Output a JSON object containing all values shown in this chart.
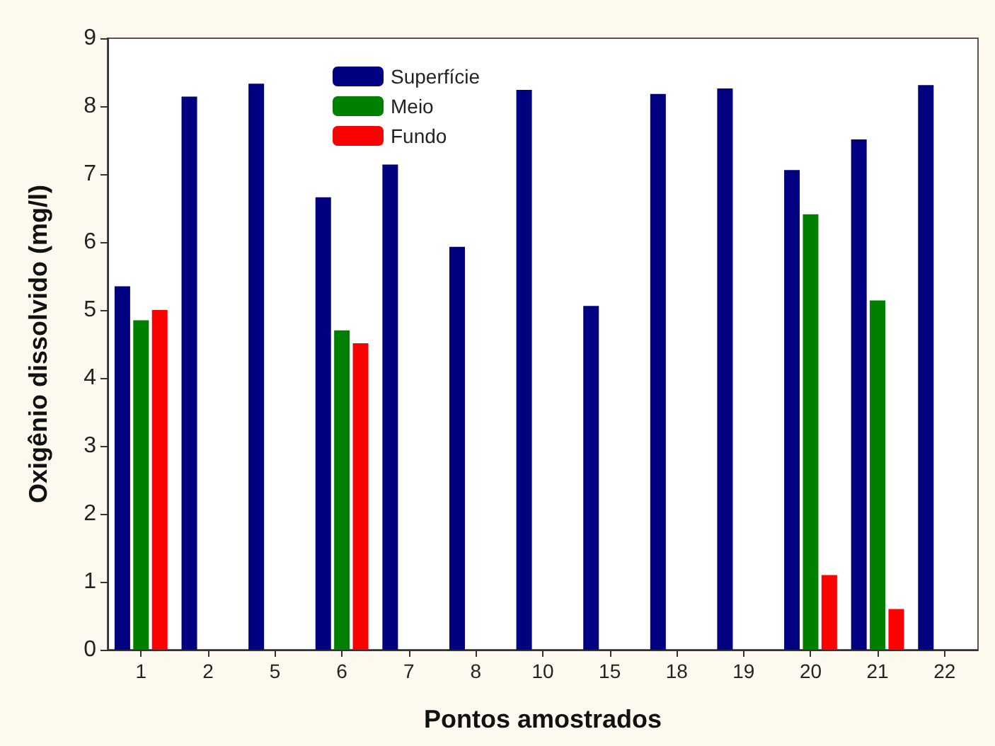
{
  "chart_data": {
    "type": "bar",
    "xlabel": "Pontos amostrados",
    "ylabel": "Oxigênio dissolvido (mg/l)",
    "categories": [
      "1",
      "2",
      "5",
      "6",
      "7",
      "8",
      "10",
      "15",
      "18",
      "19",
      "20",
      "21",
      "22"
    ],
    "series": [
      {
        "name": "Superfície",
        "color": "#000080",
        "values": [
          5.35,
          8.14,
          8.33,
          6.66,
          7.14,
          5.93,
          8.24,
          5.06,
          8.18,
          8.26,
          7.06,
          7.51,
          8.31
        ]
      },
      {
        "name": "Meio",
        "color": "#008000",
        "values": [
          4.85,
          null,
          null,
          4.7,
          null,
          null,
          null,
          null,
          null,
          null,
          6.41,
          5.14,
          null
        ]
      },
      {
        "name": "Fundo",
        "color": "#ff0000",
        "values": [
          5.0,
          null,
          null,
          4.51,
          null,
          null,
          null,
          null,
          null,
          null,
          1.1,
          0.6,
          null
        ]
      }
    ],
    "ylim": [
      0,
      9
    ],
    "yticks": [
      0,
      1,
      2,
      3,
      4,
      5,
      6,
      7,
      8,
      9
    ],
    "grid": false,
    "legend": "top left"
  }
}
